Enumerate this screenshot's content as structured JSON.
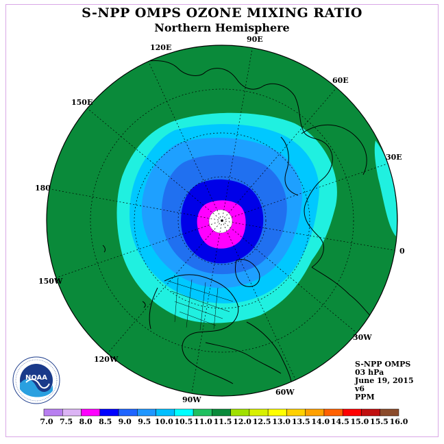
{
  "title": "S-NPP OMPS OZONE MIXING RATIO",
  "subtitle": "Northern Hemisphere",
  "longitude_labels": {
    "lon_90e": "90E",
    "lon_120e": "120E",
    "lon_60e": "60E",
    "lon_150e": "150E",
    "lon_30e": "30E",
    "lon_180": "180",
    "lon_0": "0",
    "lon_150w": "150W",
    "lon_30w": "30W",
    "lon_120w": "120W",
    "lon_60w": "60W",
    "lon_90w": "90W"
  },
  "info": {
    "instrument": "S-NPP OMPS",
    "level": "03 hPa",
    "date": "June 19, 2015",
    "version": "v6",
    "units": "PPM"
  },
  "logo": {
    "text": "NOAA",
    "ring_text": "NATIONAL OCEANIC AND ATMOSPHERIC ADMINISTRATION · U.S. DEPARTMENT OF COMMERCE"
  },
  "colorbar": {
    "ticks": [
      "7.0",
      "7.5",
      "8.0",
      "8.5",
      "9.0",
      "9.5",
      "10.0",
      "10.5",
      "11.0",
      "11.5",
      "12.0",
      "12.5",
      "13.0",
      "13.5",
      "14.0",
      "14.5",
      "15.0",
      "15.5",
      "16.0"
    ],
    "colors": [
      "#b87ff0",
      "#dcb4f5",
      "#ff00ff",
      "#0000ff",
      "#1e64ff",
      "#1e96ff",
      "#00bfff",
      "#00ffff",
      "#20c060",
      "#0a8a3a",
      "#a0e000",
      "#d8f000",
      "#ffff00",
      "#ffd000",
      "#ffa000",
      "#ff6000",
      "#ff0000",
      "#c01010",
      "#8a4a2a"
    ]
  },
  "map_colors": {
    "c_11_0": "#0a8a3a",
    "c_10_5": "#20f0e0",
    "c_10_0": "#00c8ff",
    "c_9_5": "#1ea0ff",
    "c_9_0": "#2070f0",
    "c_8_5": "#0000e8",
    "c_8_0": "#ff00ff",
    "no_data": "#ffffff"
  }
}
